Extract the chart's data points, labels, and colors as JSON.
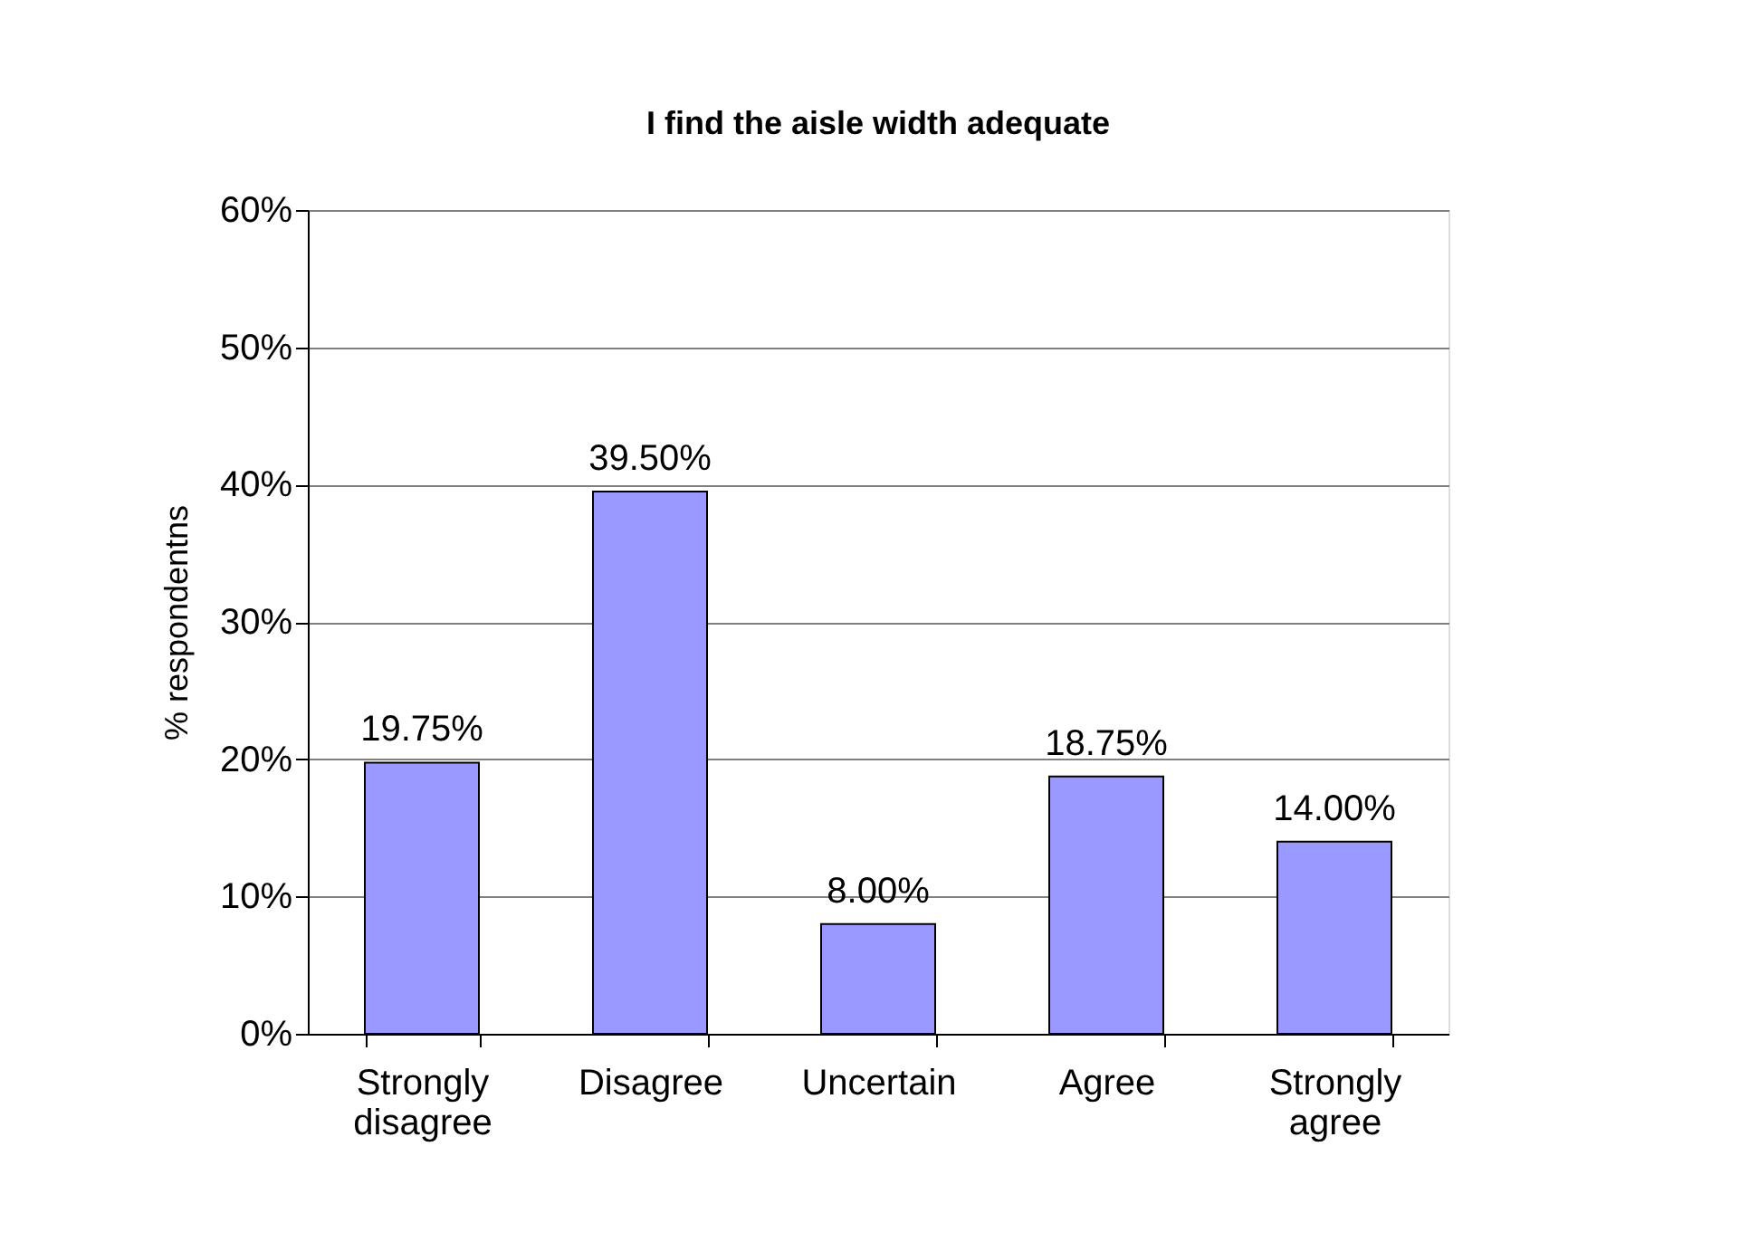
{
  "chart_data": {
    "type": "bar",
    "title": "I find the aisle width adequate",
    "ylabel": "% respondentns",
    "categories": [
      "Strongly disagree",
      "Disagree",
      "Uncertain",
      "Agree",
      "Strongly agree"
    ],
    "values": [
      19.75,
      39.5,
      8.0,
      18.75,
      14.0
    ],
    "color": "#9999ff",
    "value_labels": [
      "19.75%",
      "39.50%",
      "8.00%",
      "18.75%",
      "14.00%"
    ],
    "ylim": [
      0,
      60
    ],
    "yticks": [
      {
        "value": 0,
        "label": "0%"
      },
      {
        "value": 10,
        "label": "10%"
      },
      {
        "value": 20,
        "label": "20%"
      },
      {
        "value": 30,
        "label": "30%"
      },
      {
        "value": 40,
        "label": "40%"
      },
      {
        "value": 50,
        "label": "50%"
      },
      {
        "value": 60,
        "label": "60%"
      }
    ],
    "grid": "y"
  }
}
